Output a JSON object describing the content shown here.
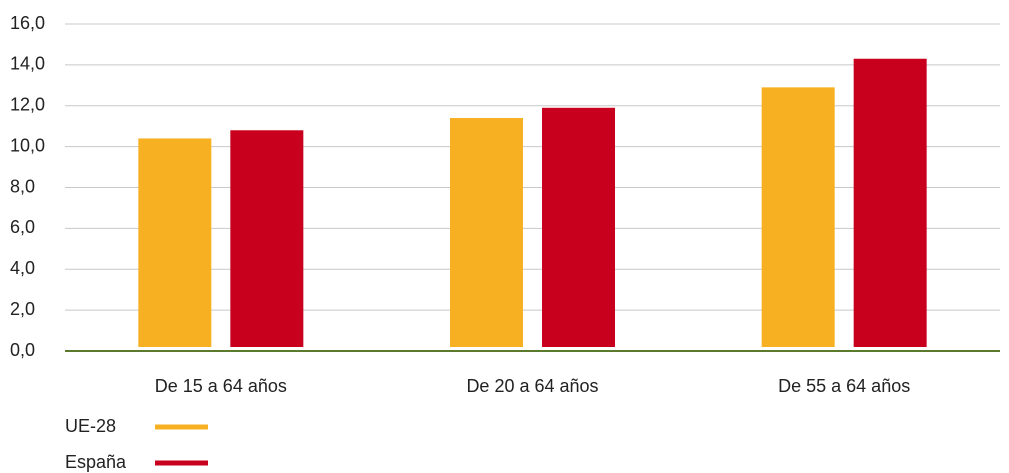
{
  "chart_data": {
    "type": "bar",
    "categories": [
      "De 15 a 64 años",
      "De 20 a 64 años",
      "De 55 a 64 años"
    ],
    "series": [
      {
        "name": "UE-28",
        "color": "#f6b022",
        "values": [
          10.4,
          11.4,
          12.9
        ]
      },
      {
        "name": "España",
        "color": "#c8001e",
        "values": [
          10.8,
          11.9,
          14.3
        ]
      }
    ],
    "ylim": [
      0,
      16
    ],
    "yticks": [
      {
        "value": 0,
        "label": "0,0"
      },
      {
        "value": 2,
        "label": "2,0"
      },
      {
        "value": 4,
        "label": "4,0"
      },
      {
        "value": 6,
        "label": "6,0"
      },
      {
        "value": 8,
        "label": "8,0"
      },
      {
        "value": 10,
        "label": "10,0"
      },
      {
        "value": 12,
        "label": "12,0"
      },
      {
        "value": 14,
        "label": "14,0"
      },
      {
        "value": 16,
        "label": "16,0"
      }
    ],
    "grid": true
  }
}
